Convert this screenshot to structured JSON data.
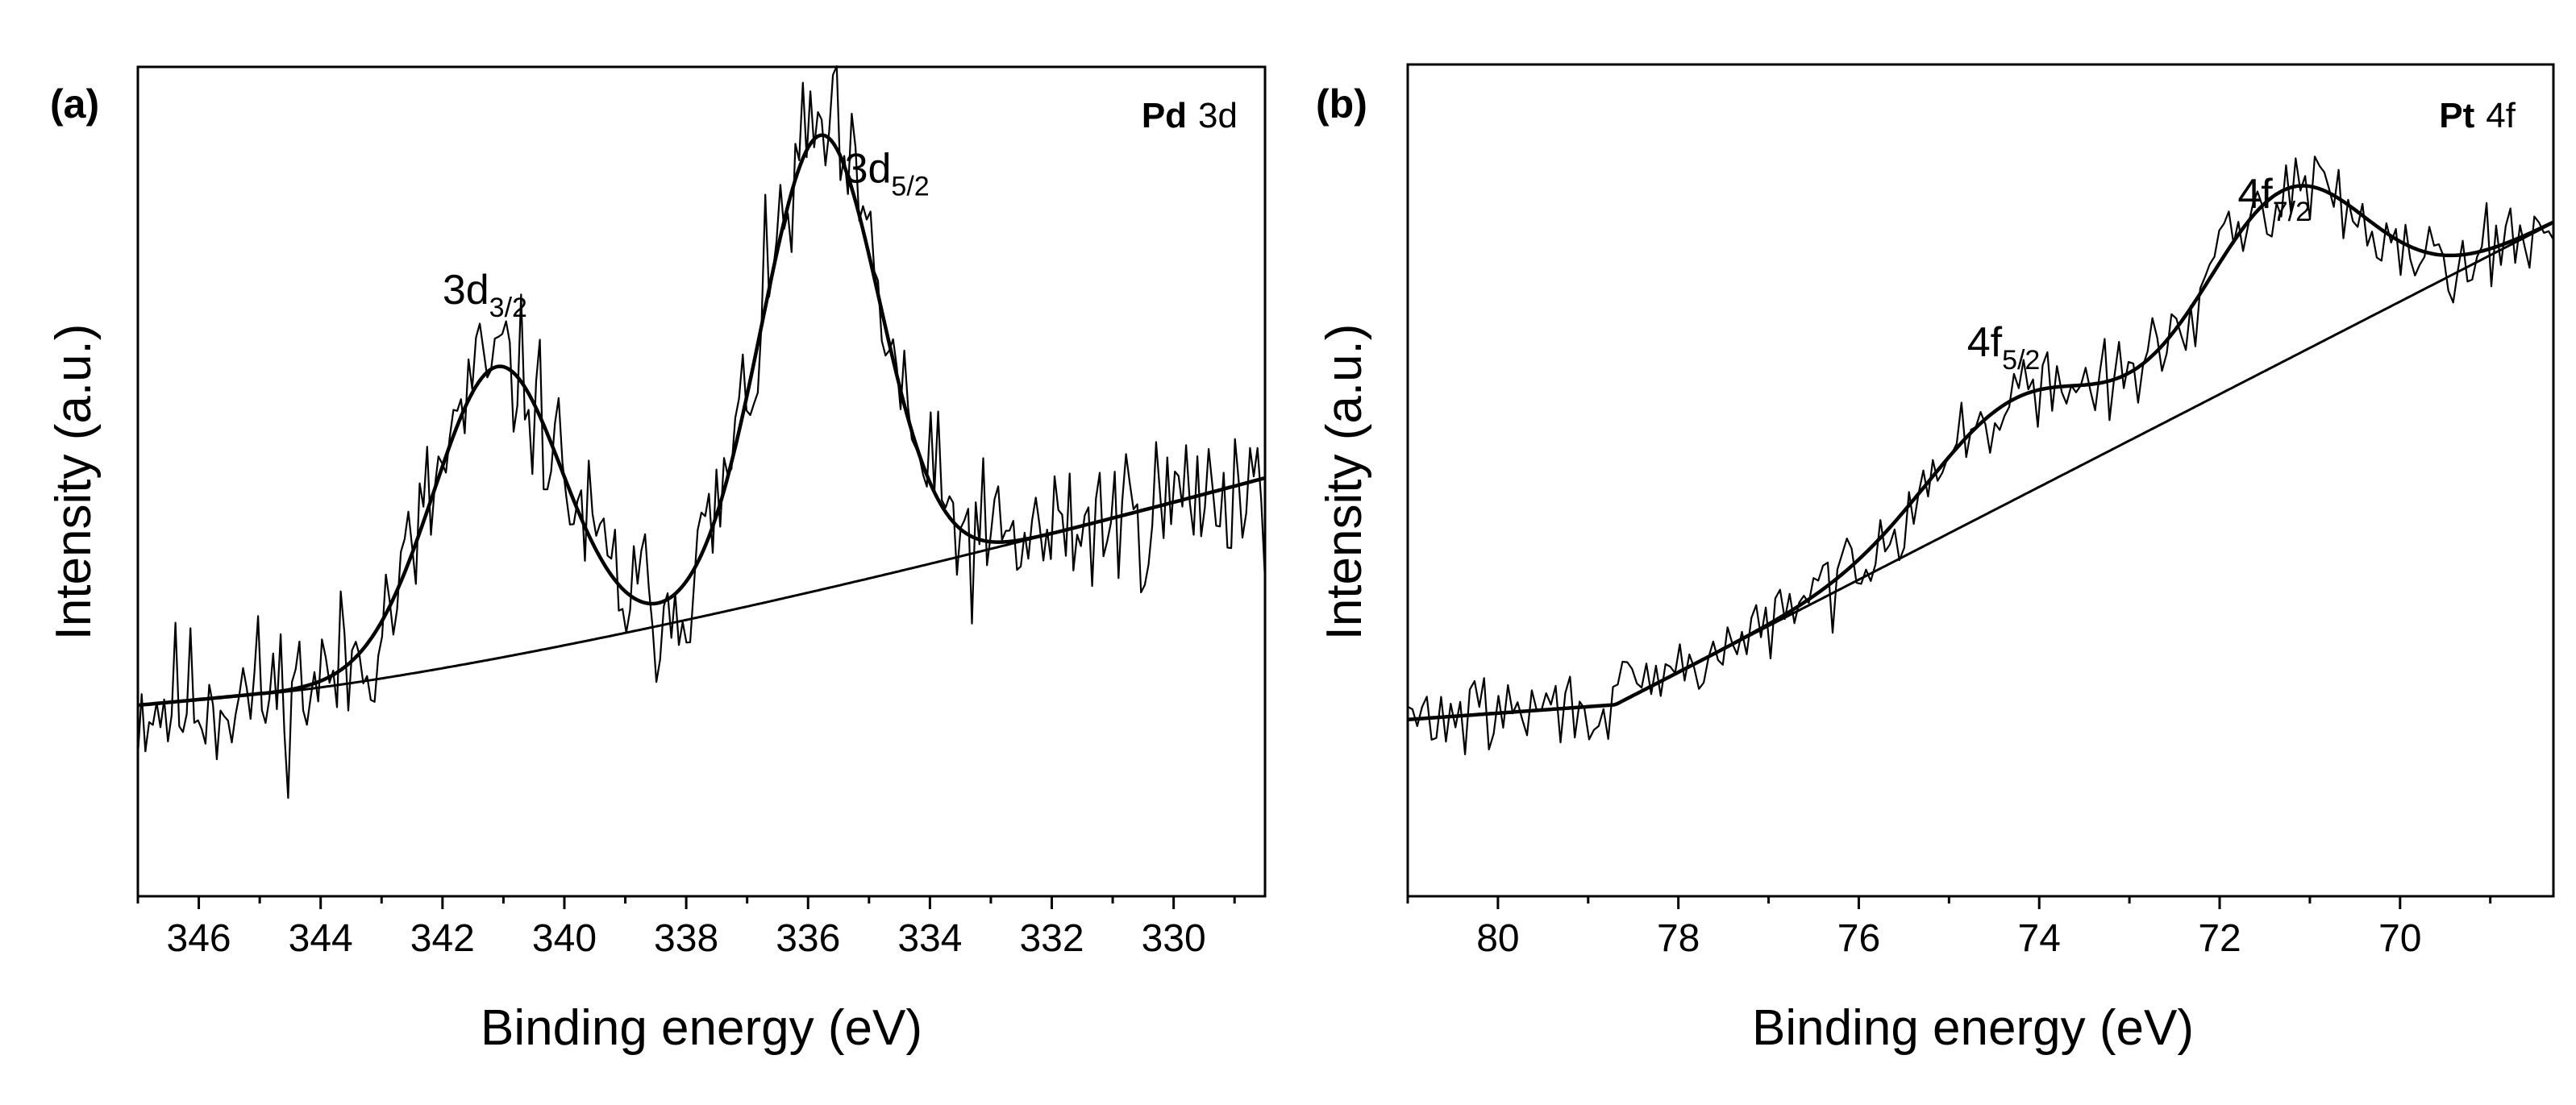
{
  "chart_data": [
    {
      "type": "line",
      "panel_label": "(a)",
      "element_label": "Pd",
      "orbital_label": "3d",
      "xlabel": "Binding energy (eV)",
      "ylabel": "Intensity (a.u.)",
      "xlim": [
        347,
        328.5
      ],
      "ylim": [
        0,
        100
      ],
      "x_ticks": [
        346,
        344,
        342,
        340,
        338,
        336,
        334,
        332,
        330
      ],
      "x_tick_labels": [
        "346",
        "344",
        "342",
        "340",
        "338",
        "336",
        "334",
        "332",
        "330"
      ],
      "baseline": {
        "x_start": 347,
        "x_end": 328.5,
        "y_start": 20,
        "y_end": 50,
        "kink_x": 345.0,
        "kink_y": 21.5,
        "curvature": 1.25
      },
      "peaks": [
        {
          "main": "3d",
          "sub": "3/2",
          "center": 341.1,
          "amplitude": 38.5,
          "width": 1.05,
          "label_x": 342.0,
          "label_y": 73
        },
        {
          "main": "3d",
          "sub": "5/2",
          "center": 335.8,
          "amplitude": 60,
          "width": 0.97,
          "label_x": 335.4,
          "label_y": 89
        }
      ],
      "noise": {
        "amplitude": 5.2,
        "points": 300,
        "seed": 11
      }
    },
    {
      "type": "line",
      "panel_label": "(b)",
      "element_label": "Pt",
      "orbital_label": "4f",
      "xlabel": "Binding energy (eV)",
      "ylabel": "Intensity (a.u.)",
      "xlim": [
        81.0,
        68.3
      ],
      "ylim": [
        0,
        100
      ],
      "x_ticks": [
        80,
        78,
        76,
        74,
        72,
        70
      ],
      "x_tick_labels": [
        "80",
        "78",
        "76",
        "74",
        "72",
        "70"
      ],
      "baseline": {
        "x_start": 81.0,
        "x_end": 68.3,
        "y_start": 16,
        "y_end": 83,
        "kink_x": 78.7,
        "kink_y": 18,
        "curvature": 1.0
      },
      "peaks": [
        {
          "main": "4f",
          "sub": "5/2",
          "center": 74.3,
          "amplitude": 13.5,
          "width": 0.95,
          "label_x": 74.8,
          "label_y": 65
        },
        {
          "main": "4f",
          "sub": "7/2",
          "center": 71.3,
          "amplitude": 23,
          "width": 0.9,
          "label_x": 71.8,
          "label_y": 85
        }
      ],
      "noise": {
        "amplitude": 2.6,
        "points": 240,
        "seed": 29
      }
    }
  ]
}
